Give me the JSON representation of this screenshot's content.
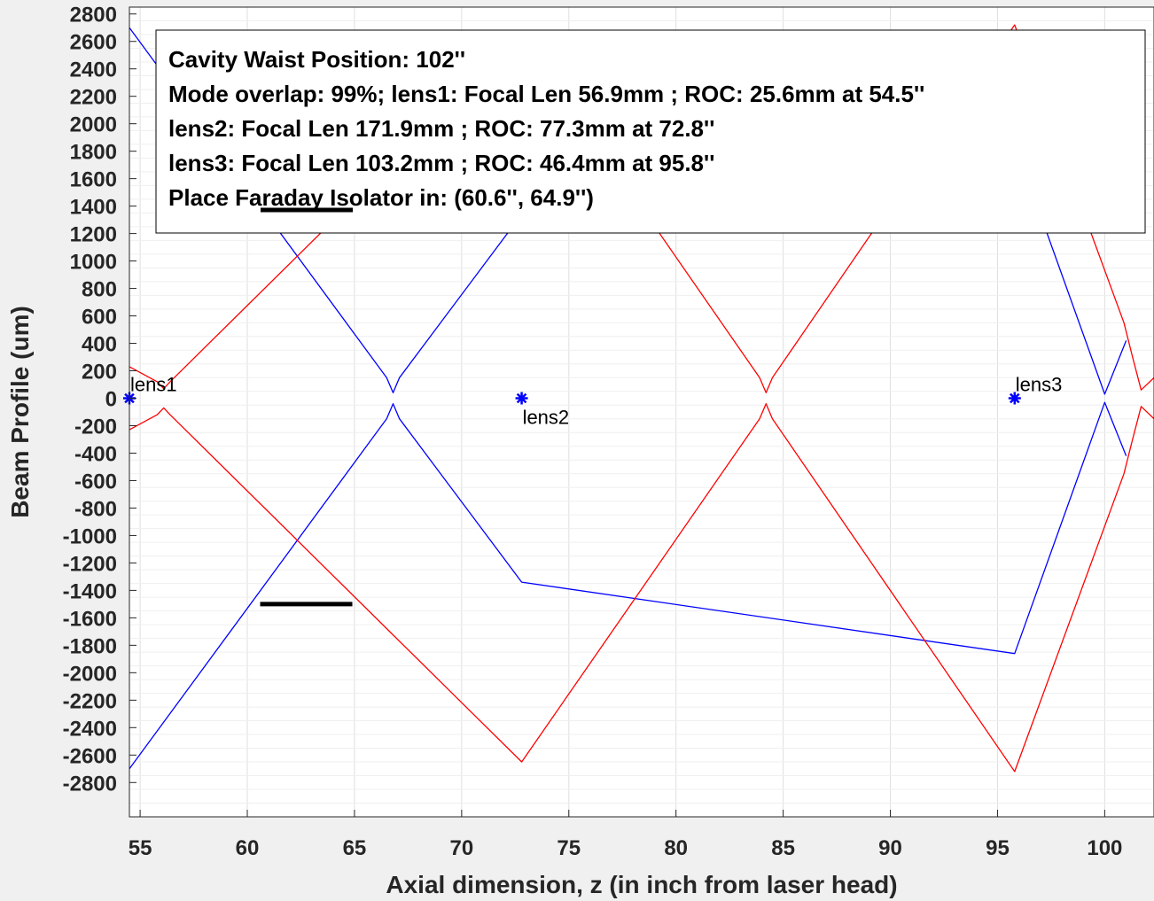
{
  "chart_data": {
    "type": "line",
    "title": "",
    "xlabel": "Axial dimension, z (in inch from laser head)",
    "ylabel": "Beam Profile (um)",
    "xlim": [
      54.5,
      102.3
    ],
    "ylim": [
      -3050,
      2850
    ],
    "xticks": [
      55,
      60,
      65,
      70,
      75,
      80,
      85,
      90,
      95,
      100
    ],
    "yticks": [
      2800,
      2600,
      2400,
      2200,
      2000,
      1800,
      1600,
      1400,
      1200,
      1000,
      800,
      600,
      400,
      200,
      0,
      -200,
      -400,
      -600,
      -800,
      -1000,
      -1200,
      -1400,
      -1600,
      -1800,
      -2000,
      -2200,
      -2400,
      -2600,
      -2800
    ],
    "grid": true,
    "colors": {
      "blue": "#0000ff",
      "red": "#ff0000",
      "marker": "#0000ff",
      "faraday": "#000000"
    },
    "annotation": {
      "lines": [
        "Cavity Waist Position: 102''",
        "Mode overlap: 99%; lens1: Focal Len 56.9mm ; ROC: 25.6mm  at 54.5''",
        "lens2: Focal Len 171.9mm ; ROC: 77.3mm  at 72.8''",
        "lens3: Focal Len 103.2mm ; ROC: 46.4mm  at 95.8''",
        "Place Faraday Isolator in: (60.6'', 64.9'')"
      ],
      "placement": "top"
    },
    "lenses": [
      {
        "label": "lens1",
        "x": 54.5,
        "y": 0
      },
      {
        "label": "lens2",
        "x": 72.8,
        "y": 0
      },
      {
        "label": "lens3",
        "x": 95.8,
        "y": 0
      }
    ],
    "faraday_isolator": {
      "x": [
        60.6,
        64.9
      ],
      "y": -1500
    },
    "series": [
      {
        "color": "blue",
        "x": [
          54.5,
          66.5,
          66.8,
          67.1,
          72.8,
          95.8,
          100.0,
          101.0
        ],
        "y": [
          2700,
          150,
          40,
          150,
          1340,
          1860,
          30,
          420
        ]
      },
      {
        "color": "blue",
        "x": [
          54.5,
          66.5,
          66.8,
          67.1,
          72.8,
          95.8,
          100.0,
          101.0
        ],
        "y": [
          -2700,
          -150,
          -40,
          -150,
          -1340,
          -1860,
          -30,
          -420
        ]
      },
      {
        "color": "red",
        "x": [
          54.5,
          55.8,
          56.1,
          56.4,
          72.8,
          83.9,
          84.2,
          84.5,
          95.8,
          100.9,
          101.3,
          101.7,
          102.3
        ],
        "y": [
          230,
          120,
          70,
          120,
          2650,
          150,
          40,
          150,
          2720,
          550,
          300,
          60,
          150
        ]
      },
      {
        "color": "red",
        "x": [
          54.5,
          55.8,
          56.1,
          56.4,
          72.8,
          83.9,
          84.2,
          84.5,
          95.8,
          100.9,
          101.3,
          101.7,
          102.3
        ],
        "y": [
          -230,
          -120,
          -70,
          -120,
          -2650,
          -150,
          -40,
          -150,
          -2720,
          -550,
          -300,
          -60,
          -150
        ]
      }
    ]
  }
}
